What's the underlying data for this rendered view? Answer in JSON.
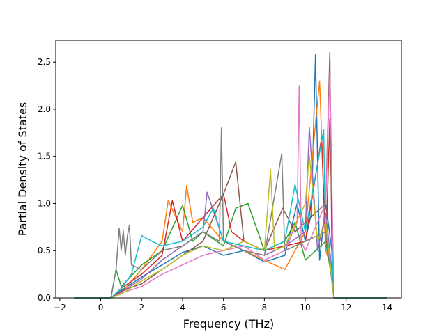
{
  "chart_data": {
    "type": "line",
    "title": "",
    "xlabel": "Frequency (THz)",
    "ylabel": "Partial Density of States",
    "xlim": [
      -2.2,
      14.7
    ],
    "ylim": [
      0.0,
      2.73
    ],
    "xticks": [
      -2,
      0,
      2,
      4,
      6,
      8,
      10,
      12,
      14
    ],
    "xtick_labels": [
      "−2",
      "0",
      "2",
      "4",
      "6",
      "8",
      "10",
      "12",
      "14"
    ],
    "yticks": [
      0.0,
      0.5,
      1.0,
      1.5,
      2.0,
      2.5
    ],
    "ytick_labels": [
      "0.0",
      "0.5",
      "1.0",
      "1.5",
      "2.0",
      "2.5"
    ],
    "grid": false,
    "legend": "none",
    "palette": [
      "#1f77b4",
      "#ff7f0e",
      "#2ca02c",
      "#d62728",
      "#9467bd",
      "#8c564b",
      "#e377c2",
      "#7f7f7f",
      "#bcbd22",
      "#17becf"
    ],
    "series": [
      {
        "color": "#1f77b4",
        "x": [
          -1.3,
          0.5,
          1.0,
          2.0,
          3.0,
          4.0,
          5.0,
          6.0,
          7.0,
          8.0,
          9.0,
          9.6,
          10.0,
          10.3,
          10.5,
          10.7,
          11.0,
          11.3,
          11.4,
          14.0
        ],
        "y": [
          0.0,
          0.0,
          0.08,
          0.22,
          0.35,
          0.48,
          0.55,
          0.45,
          0.5,
          0.38,
          0.45,
          1.0,
          0.6,
          0.9,
          2.58,
          0.4,
          1.0,
          0.5,
          0.0,
          0.0
        ]
      },
      {
        "color": "#ff7f0e",
        "x": [
          -1.3,
          0.5,
          1.0,
          2.0,
          3.0,
          3.3,
          4.0,
          4.2,
          4.5,
          5.0,
          6.0,
          7.0,
          8.0,
          9.0,
          10.0,
          10.7,
          11.0,
          11.3,
          11.4,
          14.0
        ],
        "y": [
          0.0,
          0.0,
          0.05,
          0.3,
          0.6,
          1.03,
          0.7,
          1.19,
          0.8,
          0.85,
          0.6,
          0.5,
          0.4,
          0.3,
          0.7,
          2.3,
          0.5,
          0.3,
          0.0,
          0.0
        ]
      },
      {
        "color": "#2ca02c",
        "x": [
          -1.3,
          0.5,
          0.75,
          1.0,
          2.0,
          3.0,
          4.0,
          4.5,
          5.0,
          6.0,
          6.6,
          7.2,
          8.0,
          9.0,
          9.5,
          10.0,
          11.0,
          11.3,
          11.4,
          14.0
        ],
        "y": [
          0.0,
          0.0,
          0.3,
          0.12,
          0.35,
          0.5,
          0.98,
          0.6,
          0.7,
          0.55,
          0.95,
          1.0,
          0.5,
          0.6,
          0.8,
          0.4,
          0.6,
          0.2,
          0.0,
          0.0
        ]
      },
      {
        "color": "#d62728",
        "x": [
          -1.3,
          0.5,
          1.0,
          2.0,
          3.0,
          3.5,
          4.0,
          5.0,
          6.0,
          6.4,
          7.0,
          8.0,
          9.0,
          10.0,
          10.8,
          11.0,
          11.2,
          11.4,
          14.0
        ],
        "y": [
          0.0,
          0.0,
          0.1,
          0.25,
          0.45,
          1.03,
          0.6,
          0.85,
          1.1,
          0.7,
          0.6,
          0.5,
          0.55,
          0.6,
          1.7,
          0.5,
          1.9,
          0.0,
          0.0
        ]
      },
      {
        "color": "#9467bd",
        "x": [
          -1.3,
          0.5,
          1.0,
          2.0,
          3.0,
          4.0,
          5.0,
          5.2,
          6.0,
          7.0,
          8.0,
          9.0,
          10.0,
          10.2,
          10.6,
          11.0,
          11.3,
          11.4,
          14.0
        ],
        "y": [
          0.0,
          0.0,
          0.06,
          0.2,
          0.4,
          0.55,
          0.7,
          1.12,
          0.6,
          0.5,
          0.45,
          0.55,
          0.7,
          1.81,
          0.5,
          0.9,
          0.3,
          0.0,
          0.0
        ]
      },
      {
        "color": "#8c564b",
        "x": [
          -1.3,
          0.5,
          1.0,
          2.0,
          3.0,
          4.0,
          5.0,
          6.0,
          6.6,
          7.0,
          8.0,
          8.9,
          9.5,
          10.0,
          11.0,
          11.2,
          11.3,
          11.4,
          14.0
        ],
        "y": [
          0.0,
          0.0,
          0.07,
          0.15,
          0.3,
          0.45,
          0.6,
          1.1,
          1.44,
          0.6,
          0.5,
          0.95,
          0.7,
          0.8,
          1.0,
          2.6,
          0.5,
          0.0,
          0.0
        ]
      },
      {
        "color": "#e377c2",
        "x": [
          -1.3,
          0.5,
          1.0,
          2.0,
          3.0,
          4.0,
          5.0,
          6.0,
          7.0,
          8.0,
          9.0,
          9.6,
          9.7,
          9.8,
          10.0,
          11.0,
          11.2,
          11.4,
          14.0
        ],
        "y": [
          0.0,
          0.0,
          0.05,
          0.12,
          0.25,
          0.35,
          0.45,
          0.5,
          0.55,
          0.4,
          0.5,
          0.8,
          2.25,
          0.6,
          0.5,
          1.0,
          2.4,
          0.0,
          0.0
        ]
      },
      {
        "color": "#7f7f7f",
        "x": [
          -1.3,
          0.5,
          0.75,
          0.9,
          1.0,
          1.1,
          1.2,
          1.3,
          1.4,
          1.5,
          2.0,
          3.0,
          4.0,
          5.0,
          5.8,
          5.9,
          6.0,
          7.0,
          8.0,
          8.85,
          9.0,
          10.0,
          11.0,
          11.4,
          14.0
        ],
        "y": [
          0.0,
          0.0,
          0.3,
          0.74,
          0.5,
          0.71,
          0.45,
          0.65,
          0.77,
          0.35,
          0.3,
          0.5,
          0.55,
          0.7,
          0.6,
          1.8,
          0.6,
          0.5,
          0.45,
          1.53,
          0.5,
          0.6,
          0.7,
          0.0,
          0.0
        ]
      },
      {
        "color": "#bcbd22",
        "x": [
          -1.3,
          0.5,
          1.0,
          2.0,
          3.0,
          4.0,
          5.0,
          6.0,
          7.0,
          8.0,
          8.3,
          8.5,
          9.0,
          10.0,
          10.2,
          10.6,
          11.0,
          11.4,
          14.0
        ],
        "y": [
          0.0,
          0.0,
          0.04,
          0.18,
          0.3,
          0.45,
          0.55,
          0.5,
          0.6,
          0.5,
          1.36,
          0.5,
          0.55,
          1.0,
          1.51,
          0.6,
          0.8,
          0.0,
          0.0
        ]
      },
      {
        "color": "#17becf",
        "x": [
          -1.3,
          0.5,
          1.0,
          1.5,
          2.0,
          2.5,
          3.0,
          4.0,
          5.0,
          5.5,
          6.0,
          7.0,
          8.0,
          9.0,
          9.5,
          10.0,
          10.9,
          11.0,
          11.3,
          11.4,
          14.0
        ],
        "y": [
          0.0,
          0.0,
          0.1,
          0.25,
          0.66,
          0.6,
          0.55,
          0.6,
          0.75,
          0.95,
          0.6,
          0.55,
          0.5,
          0.6,
          1.2,
          0.7,
          1.78,
          0.5,
          0.6,
          0.0,
          0.0
        ]
      }
    ]
  }
}
